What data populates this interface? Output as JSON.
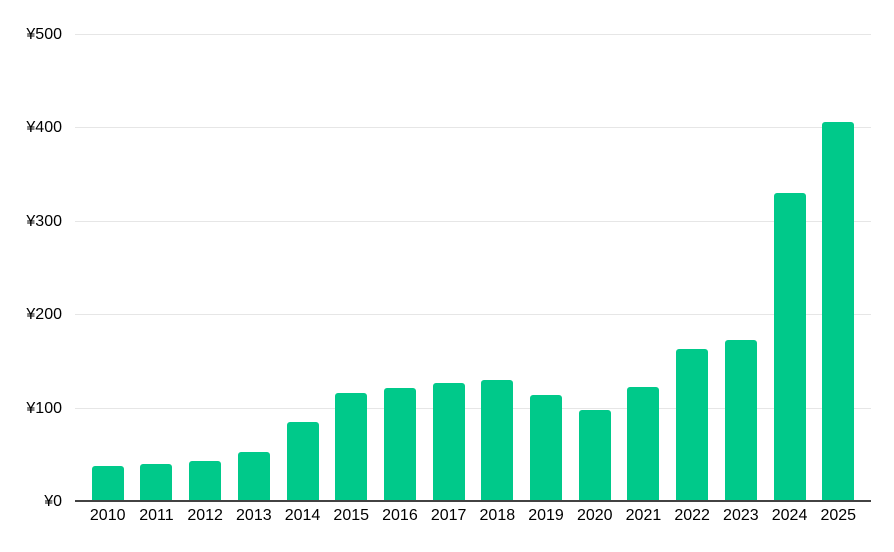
{
  "chart_data": {
    "type": "bar",
    "categories": [
      "2010",
      "2011",
      "2012",
      "2013",
      "2014",
      "2015",
      "2016",
      "2017",
      "2018",
      "2019",
      "2020",
      "2021",
      "2022",
      "2023",
      "2024",
      "2025"
    ],
    "values": [
      37,
      40,
      43,
      52,
      85,
      116,
      121,
      126,
      130,
      113,
      97,
      122,
      163,
      172,
      330,
      406
    ],
    "title": "",
    "xlabel": "",
    "ylabel": "",
    "ylim": [
      0,
      500
    ],
    "y_ticks": [
      0,
      100,
      200,
      300,
      400,
      500
    ],
    "y_tick_labels": [
      "¥0",
      "¥100",
      "¥200",
      "¥300",
      "¥400",
      "¥500"
    ],
    "currency_prefix": "¥",
    "grid": true,
    "legend_position": "none",
    "colors": {
      "bar": "#00C98A",
      "gridline": "#E6E6E6",
      "axis_line": "#424242",
      "tick_label": "#000000",
      "background": "#FFFFFF"
    }
  }
}
